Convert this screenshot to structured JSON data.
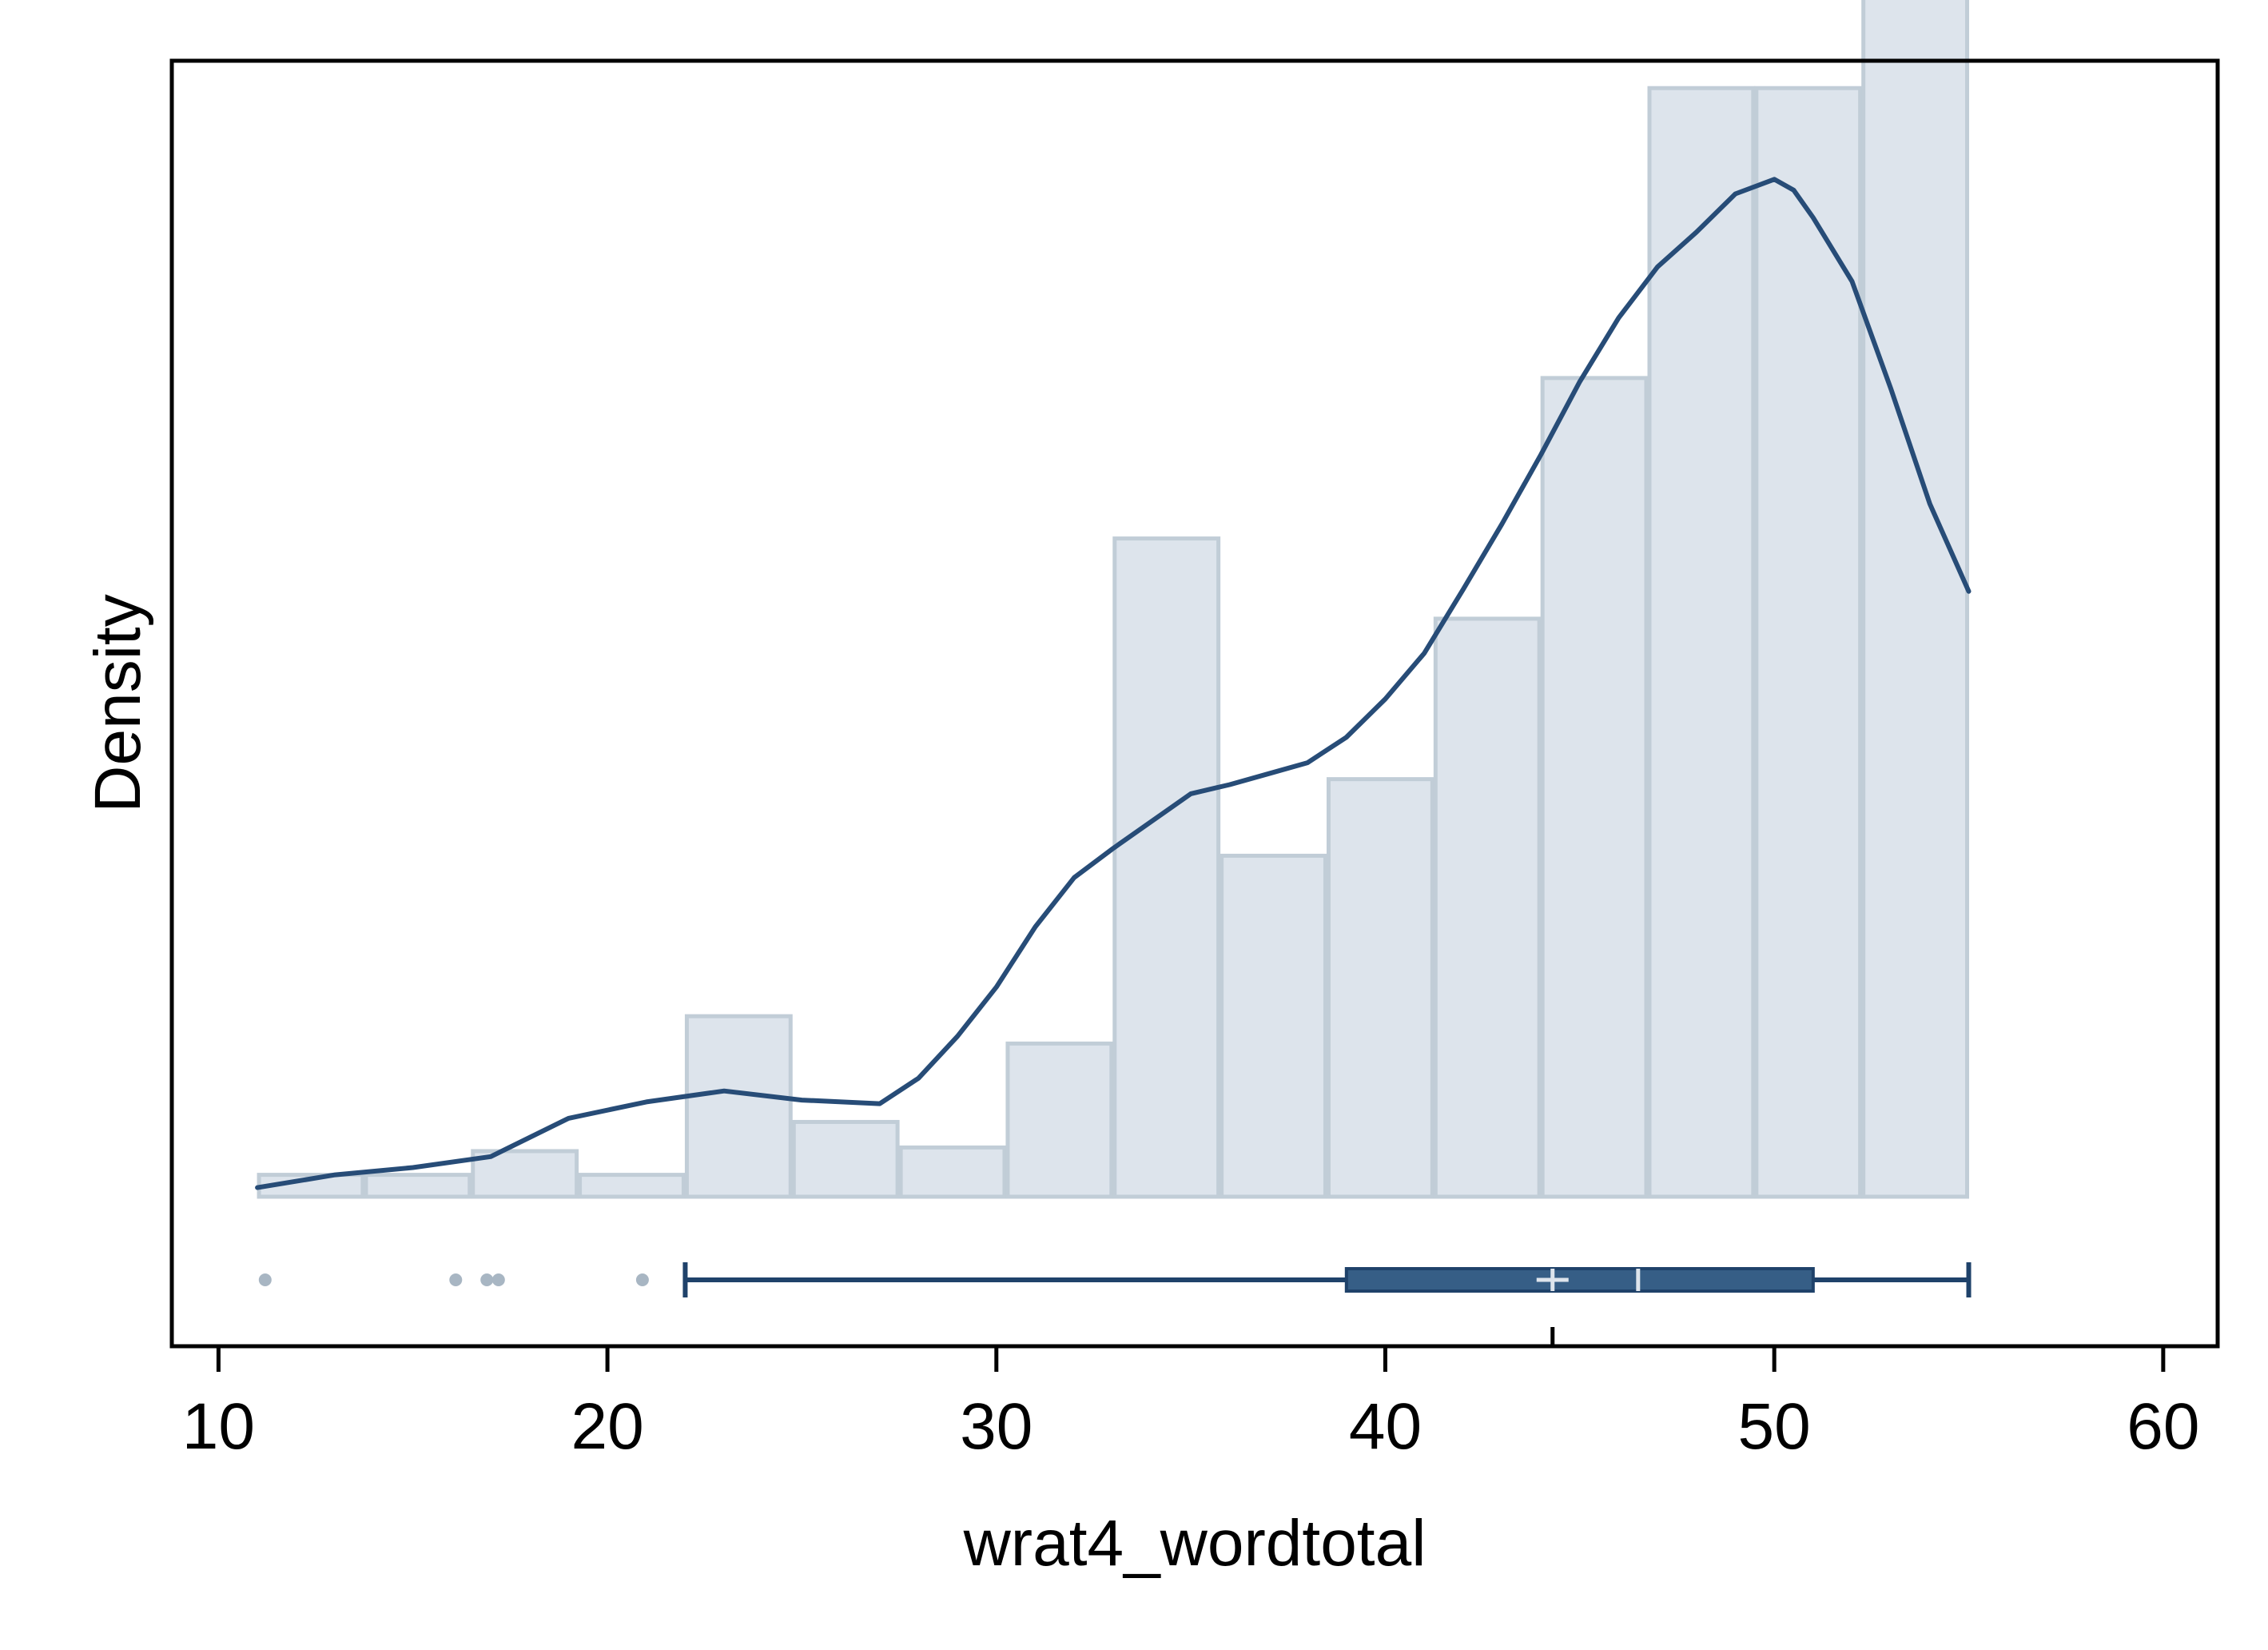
{
  "chart_data": {
    "type": "bar",
    "xlabel": "wrat4_wordtotal",
    "ylabel": "Density",
    "xlim": [
      8.8,
      61.4
    ],
    "ylim": [
      -0.0082,
      0.0623
    ],
    "x_ticks": [
      10,
      20,
      30,
      40,
      50,
      60
    ],
    "x_tick_labels": [
      "10",
      "20",
      "30",
      "40",
      "50",
      "60"
    ],
    "y_ticks_labeled": false,
    "histogram": {
      "bin_edges": [
        11,
        13.75,
        16.5,
        19.25,
        22,
        24.75,
        27.5,
        30.25,
        33,
        35.75,
        38.5,
        41.25,
        44,
        46.75,
        49.5,
        52.25,
        55
      ],
      "densities": [
        0.0012,
        0.0012,
        0.0025,
        0.0012,
        0.0099,
        0.0041,
        0.0027,
        0.0084,
        0.0361,
        0.0187,
        0.0229,
        0.0317,
        0.0449,
        0.0608,
        0.0608,
        0.0667
      ]
    },
    "kde": {
      "x": [
        11,
        13,
        15,
        17,
        19,
        21,
        23,
        25,
        27,
        28,
        29,
        30,
        31,
        32,
        33,
        34,
        35,
        36,
        37,
        38,
        39,
        40,
        41,
        42,
        43,
        44,
        45,
        46,
        47,
        48,
        49,
        50,
        50.5,
        51,
        52,
        53,
        54,
        55
      ],
      "y": [
        0.0005,
        0.0012,
        0.0016,
        0.0022,
        0.0043,
        0.0052,
        0.0058,
        0.0053,
        0.0051,
        0.0065,
        0.0088,
        0.0115,
        0.0148,
        0.0175,
        0.0191,
        0.0206,
        0.0221,
        0.0226,
        0.0232,
        0.0238,
        0.0252,
        0.0273,
        0.0298,
        0.0333,
        0.0369,
        0.0407,
        0.0447,
        0.0482,
        0.051,
        0.0529,
        0.055,
        0.0558,
        0.0552,
        0.0537,
        0.0502,
        0.0443,
        0.038,
        0.0332
      ]
    },
    "boxplot": {
      "whisker_low": 22,
      "q1": 39,
      "median": 46.5,
      "mean": 44.3,
      "q3": 51,
      "whisker_high": 55,
      "outliers": [
        11.2,
        16.1,
        16.9,
        17.2,
        20.9
      ]
    },
    "colors": {
      "bar_fill": "#dde4ec",
      "bar_edge": "#c1cdd7",
      "kde_line": "#274c77",
      "box_fill": "#365e86",
      "box_line": "#1f426a",
      "outlier": "#a8b6c3",
      "mean_marker": "#dde4ec",
      "median_line": "#dde4ec",
      "axis": "#000000"
    }
  }
}
